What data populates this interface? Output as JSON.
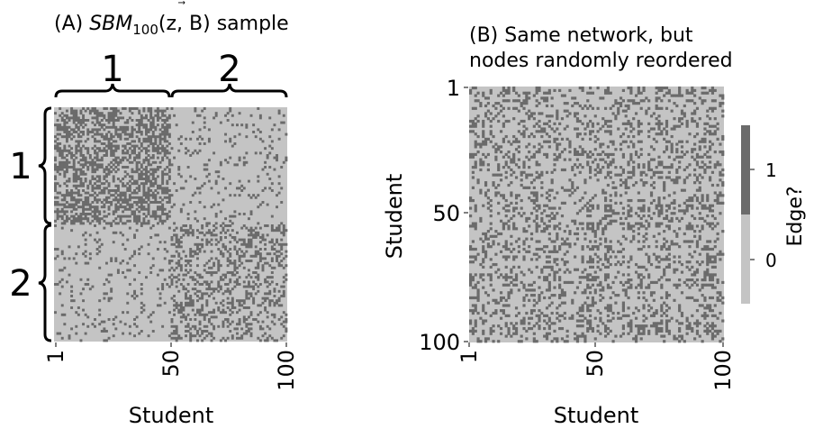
{
  "chart_data": [
    {
      "type": "heatmap",
      "title_prefix": "(A) ",
      "title_italic": "SBM",
      "title_sub": "100",
      "title_args": "(z, B)",
      "title_suffix": " sample",
      "xlabel": "Student",
      "ylabel": "",
      "n": 100,
      "xticks": [
        "1",
        "50",
        "100"
      ],
      "block_labels_top": [
        "1",
        "2"
      ],
      "block_labels_left": [
        "1",
        "2"
      ],
      "block_sizes": [
        50,
        50
      ],
      "block_probabilities": [
        [
          0.5,
          0.1
        ],
        [
          0.1,
          0.3
        ]
      ],
      "order": "sorted by community"
    },
    {
      "type": "heatmap",
      "title_lines": [
        "(B) Same network, but",
        "nodes randomly reordered"
      ],
      "xlabel": "Student",
      "ylabel": "Student",
      "n": 100,
      "xticks": [
        "1",
        "50",
        "100"
      ],
      "yticks": [
        "1",
        "50",
        "100"
      ],
      "order": "random permutation"
    }
  ],
  "colorbar": {
    "label": "Edge?",
    "ticks": [
      "0",
      "1"
    ],
    "colors": {
      "0": "#c4c4c4",
      "1": "#6b6b6b"
    }
  }
}
